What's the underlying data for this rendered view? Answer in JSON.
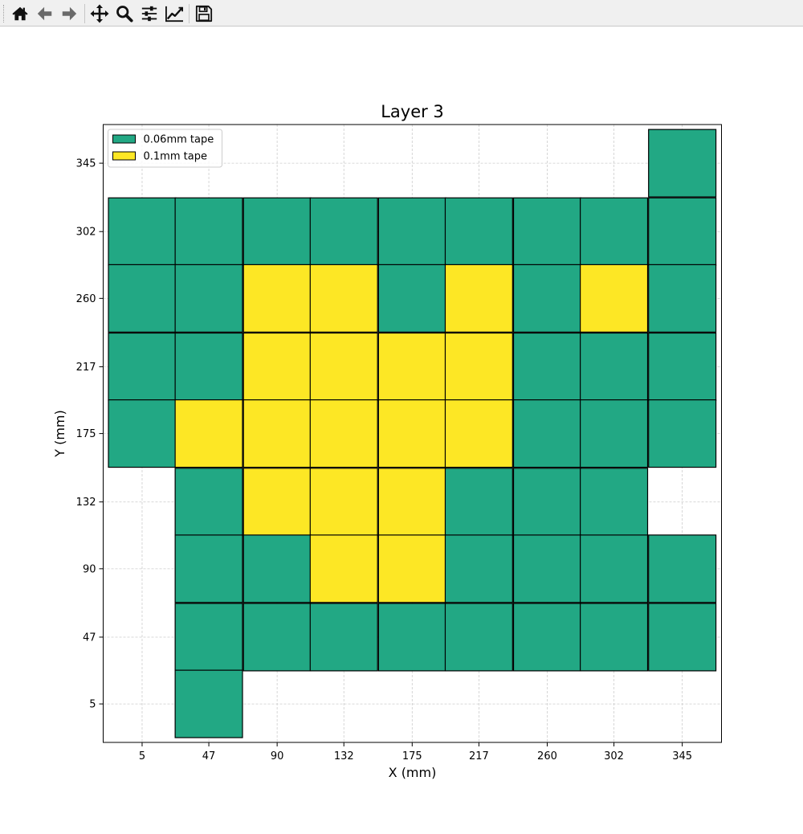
{
  "toolbar": {
    "buttons": [
      {
        "name": "home",
        "icon": "home-icon"
      },
      {
        "name": "back",
        "icon": "arrow-left-icon"
      },
      {
        "name": "forward",
        "icon": "arrow-right-icon"
      },
      {
        "name": "pan",
        "icon": "move-icon"
      },
      {
        "name": "zoom",
        "icon": "magnifier-icon"
      },
      {
        "name": "configure-subplots",
        "icon": "sliders-icon"
      },
      {
        "name": "edit-axes",
        "icon": "trend-chart-icon"
      },
      {
        "name": "save",
        "icon": "floppy-disk-icon"
      }
    ]
  },
  "colors": {
    "tape_006": "#22a884",
    "tape_01": "#fde725",
    "edge": "#000000",
    "grid": "#cccccc"
  },
  "chart_data": {
    "type": "heatmap",
    "title": "Layer 3",
    "xlabel": "X (mm)",
    "ylabel": "Y (mm)",
    "x_ticks": [
      "5",
      "47",
      "90",
      "132",
      "175",
      "217",
      "260",
      "302",
      "345"
    ],
    "y_ticks": [
      "5",
      "47",
      "90",
      "132",
      "175",
      "217",
      "260",
      "302",
      "345"
    ],
    "x_centers": [
      5,
      47,
      90,
      132,
      175,
      217,
      260,
      302,
      345
    ],
    "y_centers": [
      5,
      47,
      90,
      132,
      175,
      217,
      260,
      302,
      345
    ],
    "tile_size": 42.4,
    "xlim": [
      -19.5,
      369.7
    ],
    "ylim": [
      -19.2,
      369.3
    ],
    "grid": true,
    "legend_position": "top-left",
    "legend": [
      {
        "label": "0.06mm tape",
        "key": "g"
      },
      {
        "label": "0.1mm tape",
        "key": "y"
      }
    ],
    "rows_top_to_bottom": [
      "........g",
      "ggggggggg",
      "ggyygygyg",
      "ggyyyyggg",
      "gyyyyyggg",
      ".gyyyggg.",
      ".ggyygggg",
      ".gggggggg",
      ".g......."
    ]
  }
}
